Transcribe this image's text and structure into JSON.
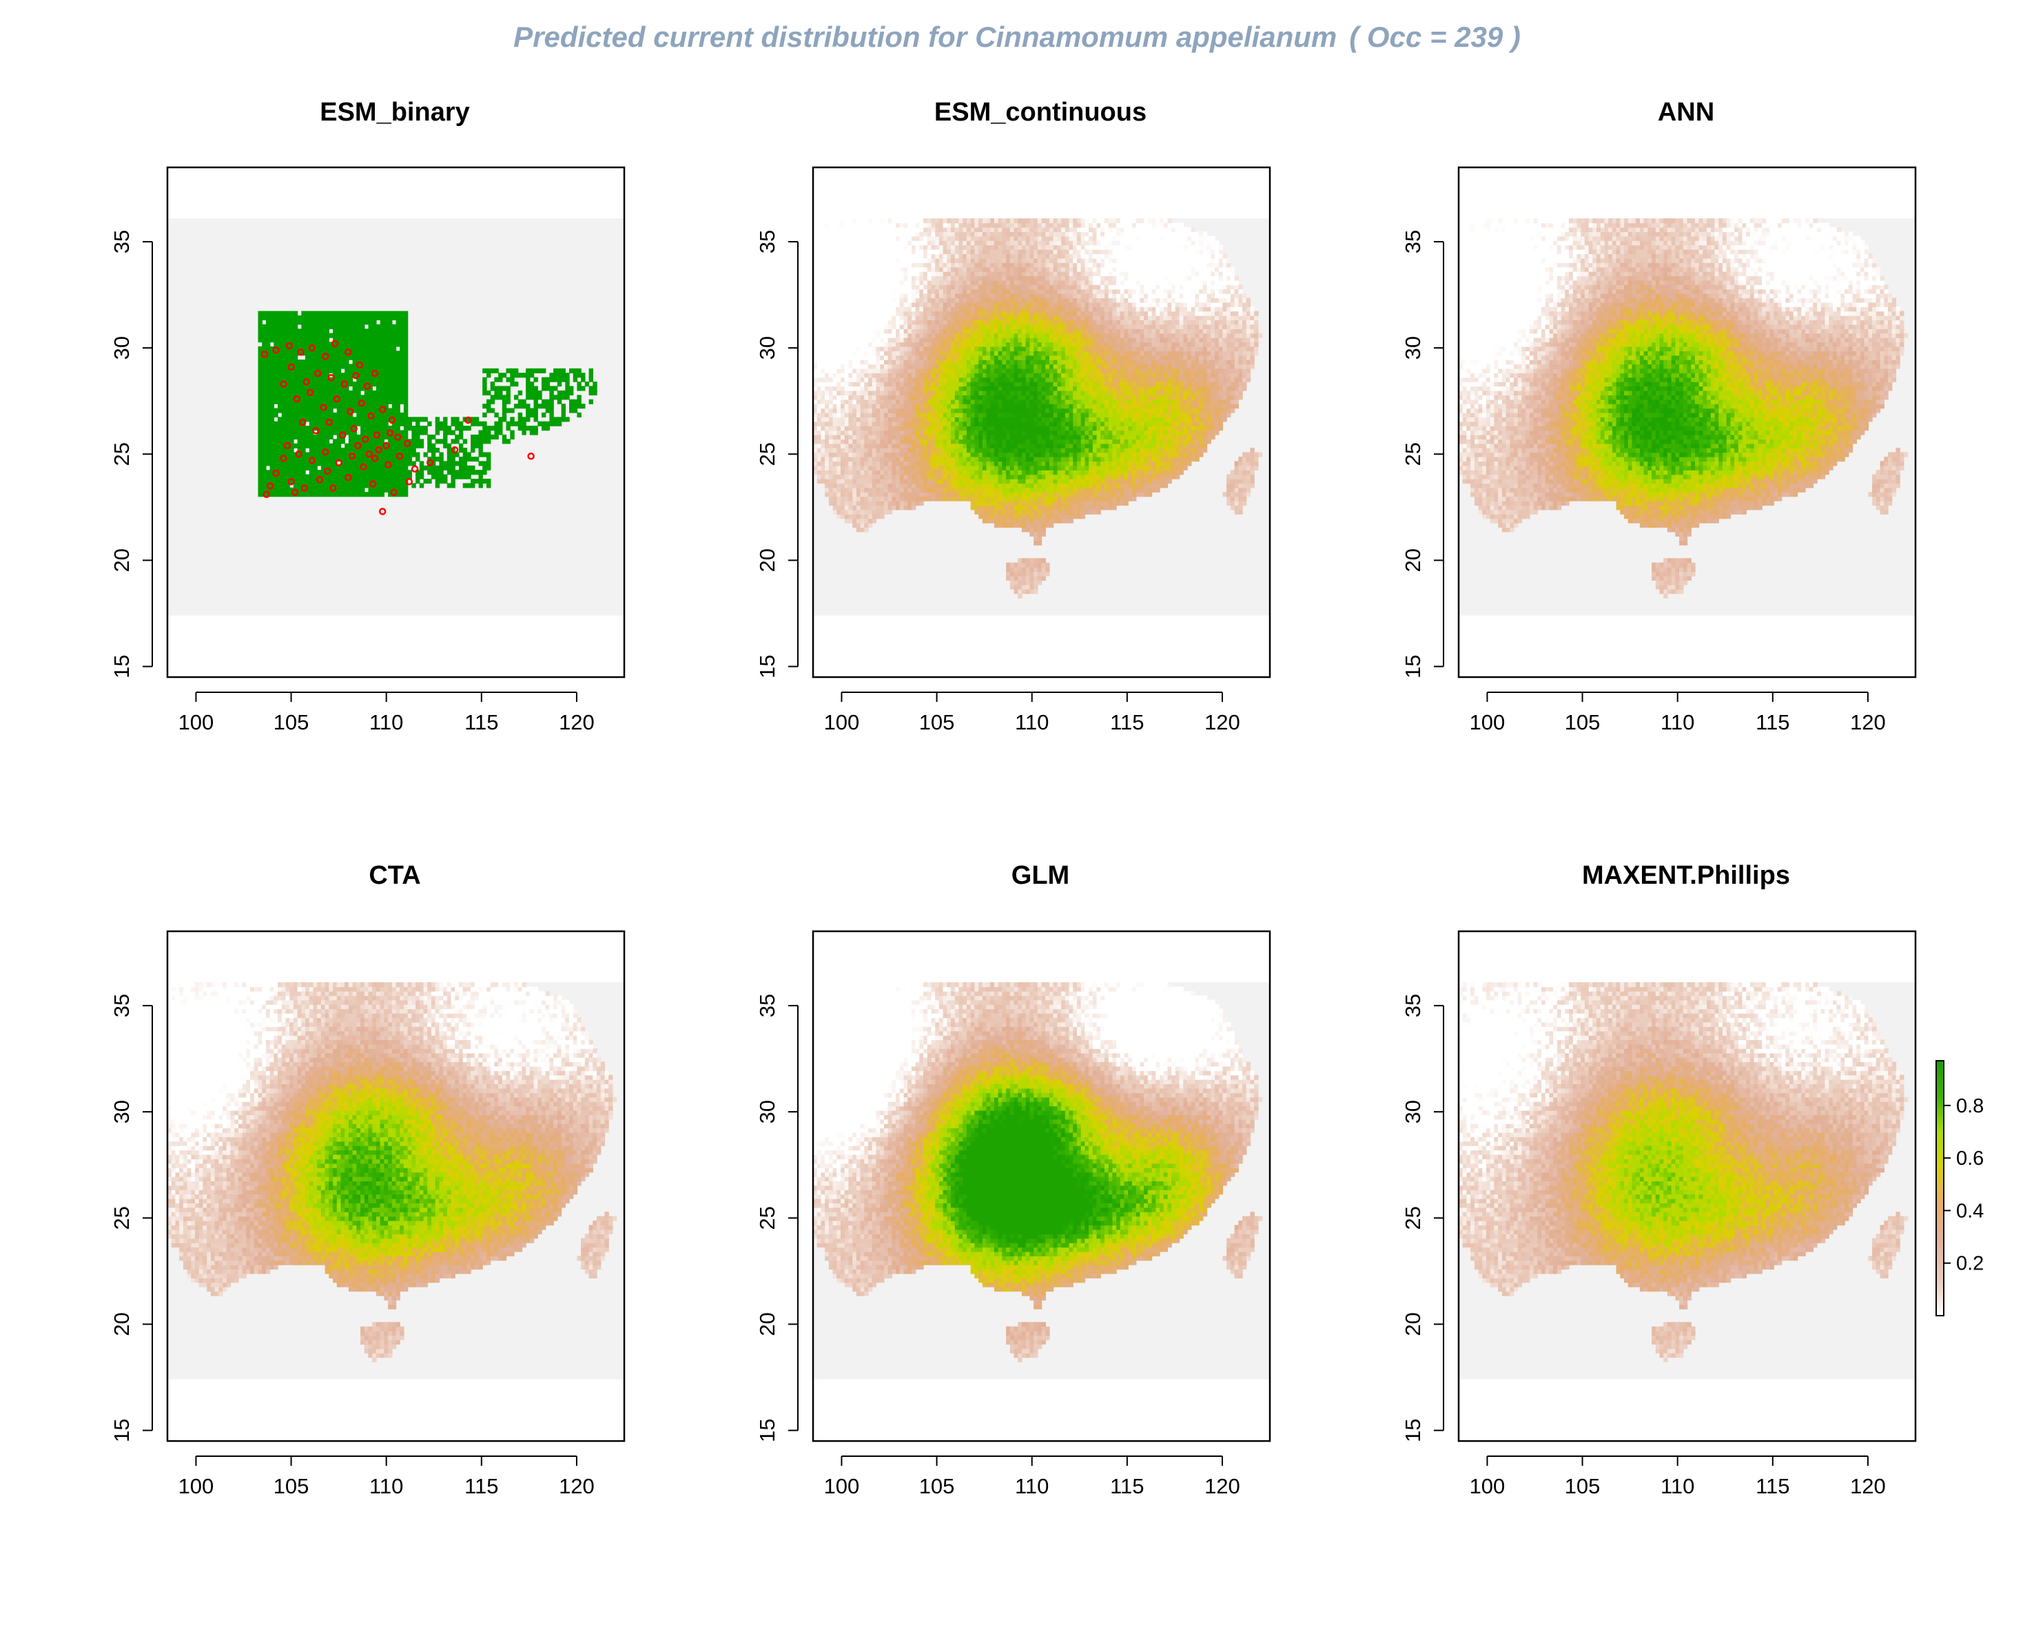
{
  "title": {
    "prefix": "Predicted current distribution for",
    "species": "Cinnamomum appelianum",
    "occ_label": "( Occ =  239  )"
  },
  "axes": {
    "x_ticks": [
      "100",
      "105",
      "110",
      "115",
      "120"
    ],
    "y_ticks": [
      "15",
      "20",
      "25",
      "30",
      "35"
    ]
  },
  "panels": [
    {
      "id": "esm-binary",
      "title": "ESM_binary",
      "type": "binary"
    },
    {
      "id": "esm-continuous",
      "title": "ESM_continuous",
      "type": "continuous",
      "strength": 1.0
    },
    {
      "id": "ann",
      "title": "ANN",
      "type": "continuous",
      "strength": 0.95
    },
    {
      "id": "cta",
      "title": "CTA",
      "type": "continuous",
      "strength": 0.85
    },
    {
      "id": "glm",
      "title": "GLM",
      "type": "continuous",
      "strength": 1.25
    },
    {
      "id": "maxent",
      "title": "MAXENT.Phillips",
      "type": "continuous",
      "strength": 0.7
    }
  ],
  "legend": {
    "ticks": [
      "0.2",
      "0.4",
      "0.6",
      "0.8"
    ],
    "tick_values": [
      0.2,
      0.4,
      0.6,
      0.8
    ],
    "range": [
      0.0,
      0.97
    ]
  },
  "colors": {
    "title": "#8ea4bd",
    "presence": "#00a000",
    "occurrence_points": "#ff0000",
    "background": "#f2f2f2",
    "scale": [
      "#ffffff",
      "#ecd0c2",
      "#e2b098",
      "#e7ae60",
      "#dcd000",
      "#aadc00",
      "#3cb400",
      "#16a000"
    ]
  }
}
